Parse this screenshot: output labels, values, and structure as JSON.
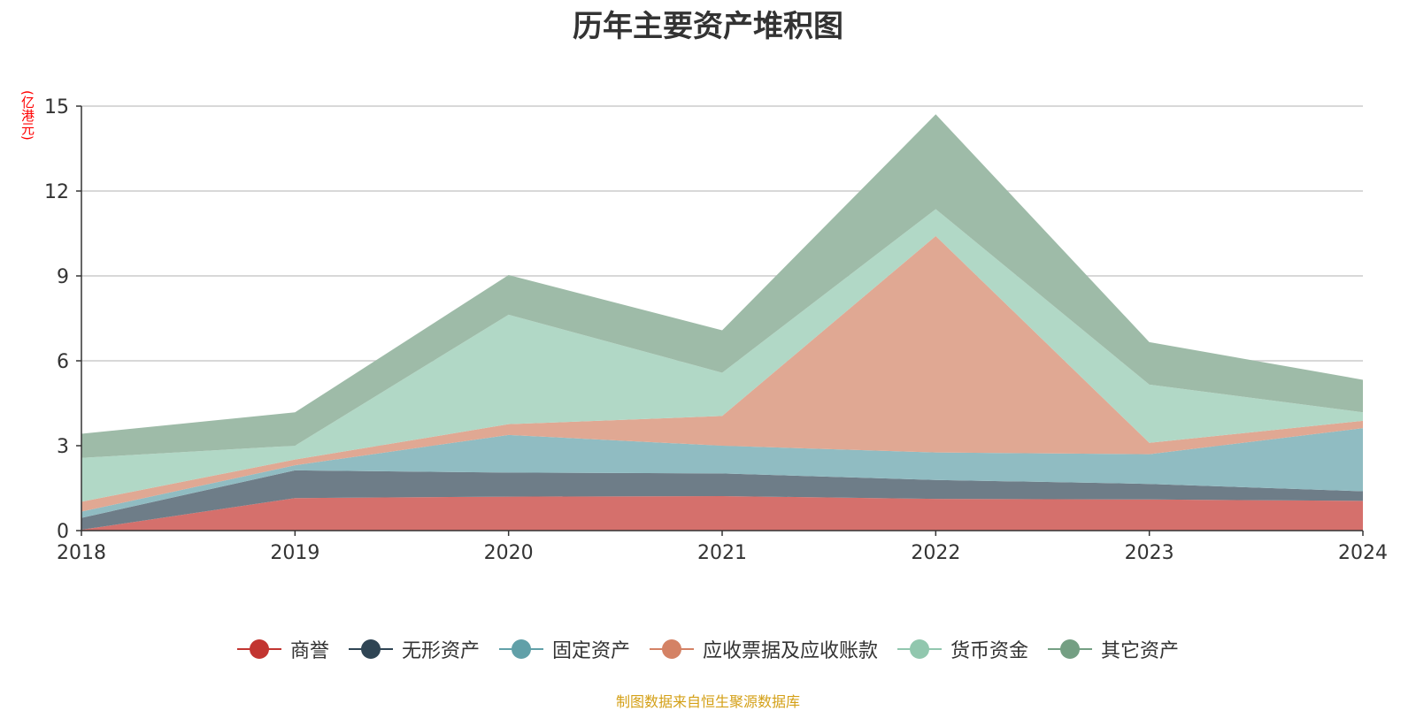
{
  "chart_data": {
    "type": "area",
    "stacked": true,
    "title": "历年主要资产堆积图",
    "ylabel": "(亿港元)",
    "x": [
      "2018",
      "2019",
      "2020",
      "2021",
      "2022",
      "2023",
      "2024"
    ],
    "ylim": [
      0,
      15
    ],
    "yticks": [
      0,
      3,
      6,
      9,
      12,
      15
    ],
    "grid": true,
    "legend_position": "bottom",
    "series": [
      {
        "name": "商誉",
        "color": "#c23531",
        "fill": "#d5706c",
        "values": [
          0.03,
          1.15,
          1.2,
          1.22,
          1.12,
          1.1,
          1.05
        ]
      },
      {
        "name": "无形资产",
        "color": "#2f4554",
        "fill": "#6e7d88",
        "values": [
          0.42,
          0.98,
          0.85,
          0.8,
          0.67,
          0.55,
          0.34
        ]
      },
      {
        "name": "固定资产",
        "color": "#61a0a8",
        "fill": "#90bcc2",
        "values": [
          0.22,
          0.18,
          1.33,
          0.98,
          0.97,
          1.05,
          2.23
        ]
      },
      {
        "name": "应收票据及应收账款",
        "color": "#d48265",
        "fill": "#e0a893",
        "values": [
          0.35,
          0.2,
          0.38,
          1.05,
          7.65,
          0.4,
          0.26
        ]
      },
      {
        "name": "货币资金",
        "color": "#91c7ae",
        "fill": "#b1d8c6",
        "values": [
          1.55,
          0.49,
          3.87,
          1.53,
          0.95,
          2.06,
          0.3
        ]
      },
      {
        "name": "其它资产",
        "color": "#749f83",
        "fill": "#9ebba8",
        "values": [
          0.85,
          1.18,
          1.4,
          1.5,
          3.35,
          1.5,
          1.15
        ]
      }
    ]
  },
  "source_text": "制图数据来自恒生聚源数据库"
}
